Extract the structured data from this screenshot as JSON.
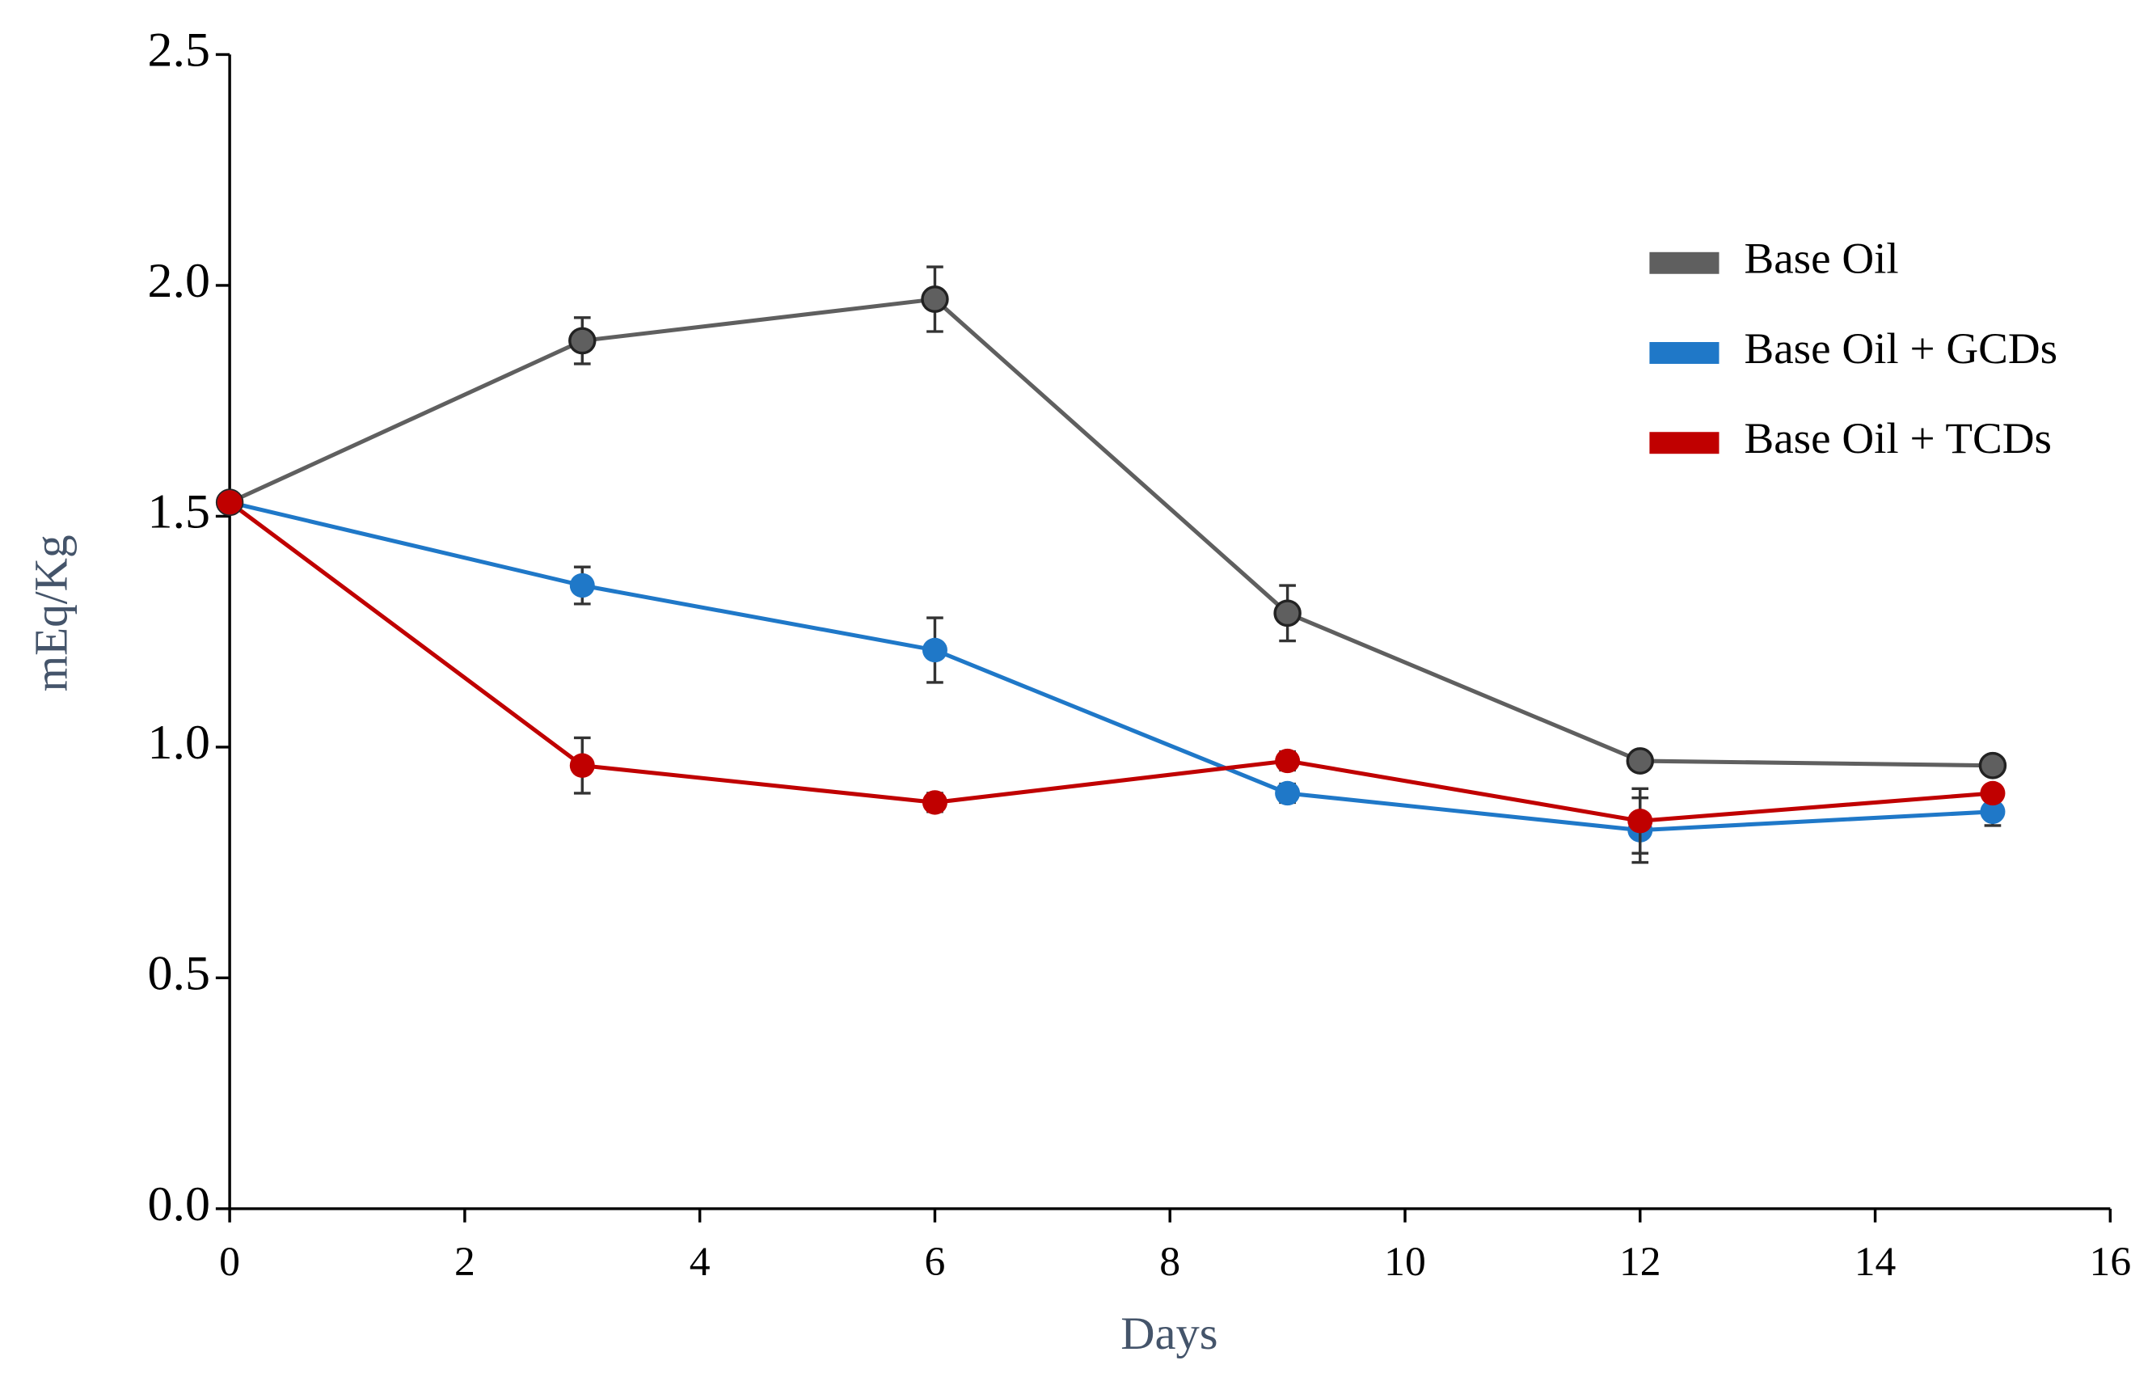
{
  "chart_data": {
    "type": "line",
    "x_label": "Days",
    "y_label": "mEq/Kg",
    "xlim": [
      0,
      16
    ],
    "xticks": [
      0,
      2,
      4,
      6,
      8,
      10,
      12,
      14,
      16
    ],
    "ylim": [
      0,
      2.5
    ],
    "yticks": [
      {
        "value": 0,
        "label": "0.0"
      },
      0.5,
      {
        "value": 1,
        "label": "1.0"
      },
      1.5,
      {
        "value": 2,
        "label": "2.0"
      },
      2.5
    ],
    "legend": "upper-right",
    "x": [
      0,
      3,
      6,
      9,
      12,
      15
    ],
    "series": [
      {
        "name": "Base Oil",
        "color": "#5f5f5f",
        "values": [
          1.53,
          1.88,
          1.97,
          1.29,
          0.97,
          0.96
        ],
        "errors": [
          0,
          0.05,
          0.07,
          0.06,
          0,
          0
        ]
      },
      {
        "name": "Base Oil + GCDs",
        "color": "#1f78c8",
        "values": [
          1.53,
          1.35,
          1.21,
          0.9,
          0.82,
          0.86
        ],
        "errors": [
          0,
          0.04,
          0.07,
          0.02,
          0.07,
          0.03
        ]
      },
      {
        "name": "Base Oil + TCDs",
        "color": "#c00000",
        "values": [
          1.53,
          0.96,
          0.88,
          0.97,
          0.84,
          0.9
        ],
        "errors": [
          0,
          0.06,
          0.02,
          0.02,
          0.07,
          0
        ]
      }
    ]
  }
}
